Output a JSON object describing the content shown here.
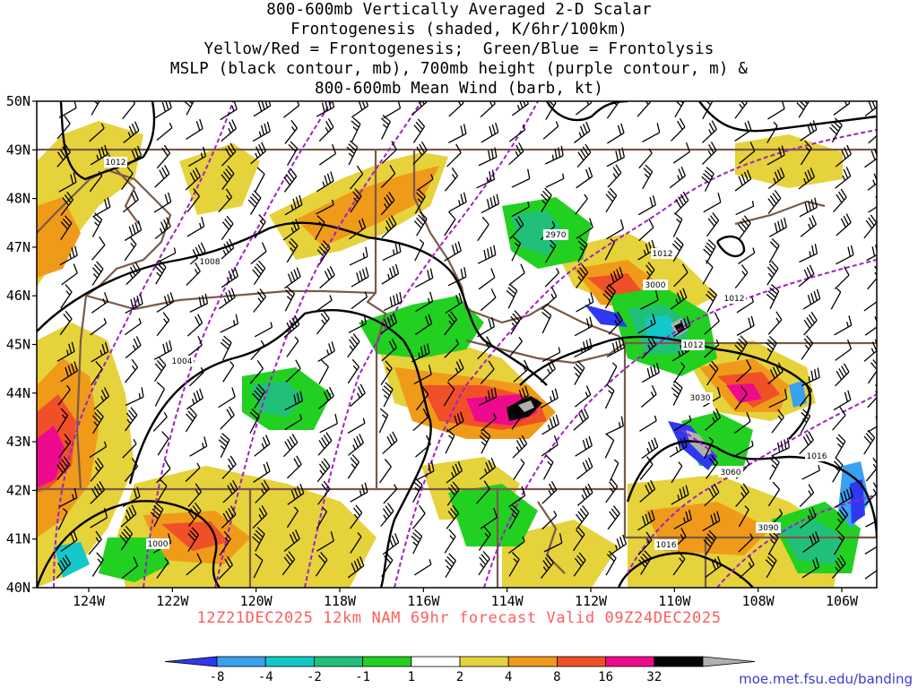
{
  "title_lines": [
    "800-600mb Vertically Averaged 2-D Scalar",
    "Frontogenesis (shaded, K/6hr/100km)",
    "Yellow/Red = Frontogenesis;  Green/Blue = Frontolysis",
    "MSLP (black contour, mb), 700mb height (purple contour, m) &",
    "800-600mb Mean Wind (barb, kt)"
  ],
  "valid_text": "12Z21DEC2025 12km NAM 69hr forecast Valid 09Z24DEC2025",
  "credit": "moe.met.fsu.edu/banding",
  "map": {
    "lat_labels": [
      "50N",
      "49N",
      "48N",
      "47N",
      "46N",
      "45N",
      "44N",
      "43N",
      "42N",
      "41N",
      "40N"
    ],
    "lon_labels": [
      "124W",
      "122W",
      "120W",
      "118W",
      "116W",
      "114W",
      "112W",
      "110W",
      "108W",
      "106W"
    ],
    "mslp_labels": [
      "1012",
      "1008",
      "1004",
      "1000",
      "1012",
      "1012",
      "1012",
      "1016",
      "1016"
    ],
    "height_labels": [
      "2970",
      "3000",
      "3030",
      "3060",
      "3090"
    ]
  },
  "colorbar": {
    "ticks": [
      "-8",
      "-4",
      "-2",
      "-1",
      "1",
      "2",
      "4",
      "8",
      "16",
      "32"
    ],
    "colors": [
      "#2f38f0",
      "#3aa0f0",
      "#13c8c8",
      "#21c07a",
      "#22d022",
      "#ffffff",
      "#e6d23a",
      "#f09a1a",
      "#f05028",
      "#ee0a8c",
      "#050505",
      "#b0b0b0"
    ]
  },
  "chart_data": {
    "type": "heatmap",
    "title": "800-600mb Vertically Averaged 2-D Scalar Frontogenesis (shaded, K/6hr/100km)",
    "xlabel": "",
    "ylabel": "",
    "x_range": [
      "125W",
      "105W"
    ],
    "y_range": [
      "40N",
      "50N"
    ],
    "color_scale_ticks": [
      -8,
      -4,
      -2,
      -1,
      1,
      2,
      4,
      8,
      16,
      32
    ],
    "contours": {
      "mslp_mb": [
        1000,
        1004,
        1008,
        1012,
        1016
      ],
      "height_700mb_m": [
        2970,
        3000,
        3030,
        3060,
        3090
      ]
    }
  }
}
